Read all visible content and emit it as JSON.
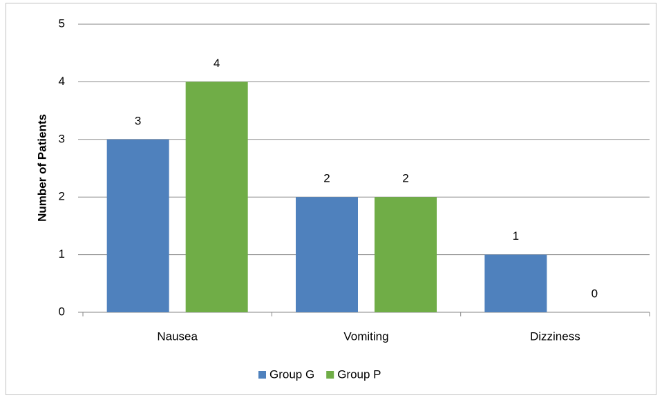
{
  "chart_data": {
    "type": "bar",
    "ylabel": "Number of Patients",
    "categories": [
      "Nausea",
      "Vomiting",
      "Dizziness"
    ],
    "series": [
      {
        "name": "Group G",
        "color": "#4f81bd",
        "values": [
          3,
          2,
          1
        ]
      },
      {
        "name": "Group P",
        "color": "#70ad47",
        "values": [
          4,
          2,
          0
        ]
      }
    ],
    "ylim": [
      0,
      5
    ],
    "yticks": [
      0,
      1,
      2,
      3,
      4,
      5
    ],
    "grid": true,
    "legend": "bottom"
  }
}
